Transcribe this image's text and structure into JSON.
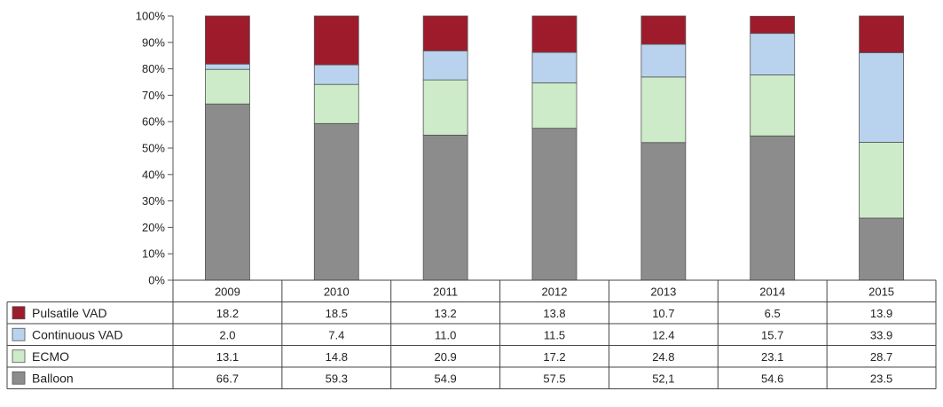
{
  "chart_data": {
    "type": "bar",
    "stacked": true,
    "categories": [
      "2009",
      "2010",
      "2011",
      "2012",
      "2013",
      "2014",
      "2015"
    ],
    "ylim": [
      0,
      100
    ],
    "yticks": [
      "0%",
      "10%",
      "20%",
      "30%",
      "40%",
      "50%",
      "60%",
      "70%",
      "80%",
      "90%",
      "100%"
    ],
    "grid": false,
    "legend_placement": "data table, left column",
    "series": [
      {
        "name": "Balloon",
        "color": "#8c8c8c",
        "values": [
          66.7,
          59.3,
          54.9,
          57.5,
          52.1,
          54.6,
          23.5
        ],
        "labels": [
          "66.7",
          "59.3",
          "54.9",
          "57.5",
          "52,1",
          "54.6",
          "23.5"
        ]
      },
      {
        "name": "ECMO",
        "color": "#cdebc8",
        "values": [
          13.1,
          14.8,
          20.9,
          17.2,
          24.8,
          23.1,
          28.7
        ],
        "labels": [
          "13.1",
          "14.8",
          "20.9",
          "17.2",
          "24.8",
          "23.1",
          "28.7"
        ]
      },
      {
        "name": "Continuous VAD",
        "color": "#b9d3ee",
        "values": [
          2.0,
          7.4,
          11.0,
          11.5,
          12.4,
          15.7,
          33.9
        ],
        "labels": [
          "2.0",
          "7.4",
          "11.0",
          "11.5",
          "12.4",
          "15.7",
          "33.9"
        ]
      },
      {
        "name": "Pulsatile VAD",
        "color": "#9e1b2c",
        "values": [
          18.2,
          18.5,
          13.2,
          13.8,
          10.7,
          6.5,
          13.9
        ],
        "labels": [
          "18.2",
          "18.5",
          "13.2",
          "13.8",
          "10.7",
          "6.5",
          "13.9"
        ]
      }
    ],
    "table_row_order": [
      "Pulsatile VAD",
      "Continuous VAD",
      "ECMO",
      "Balloon"
    ]
  }
}
